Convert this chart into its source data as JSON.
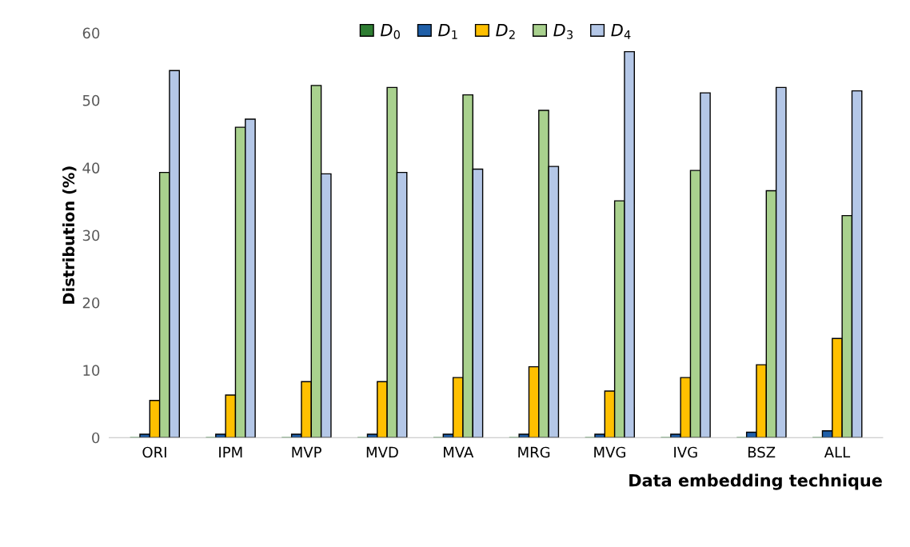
{
  "chart_data": {
    "type": "bar",
    "xlabel": "Data embedding technique",
    "ylabel": "Distribution (%)",
    "categories": [
      "ORI",
      "IPM",
      "MVP",
      "MVD",
      "MVA",
      "MRG",
      "MVG",
      "IVG",
      "BSZ",
      "ALL"
    ],
    "series": [
      {
        "name": "D$_{0}$",
        "color": "#2e7d32",
        "values": [
          0,
          0,
          0,
          0,
          0,
          0,
          0,
          0,
          0,
          0
        ]
      },
      {
        "name": "D$_{1}$",
        "color": "#1f5fa8",
        "values": [
          0.5,
          0.5,
          0.5,
          0.5,
          0.5,
          0.5,
          0.5,
          0.5,
          0.8,
          1.0
        ]
      },
      {
        "name": "D$_{2}$",
        "color": "#ffc000",
        "values": [
          5.5,
          6.3,
          8.3,
          8.3,
          8.9,
          10.5,
          6.9,
          8.9,
          10.8,
          14.7
        ]
      },
      {
        "name": "D$_{3}$",
        "color": "#a9d18e",
        "values": [
          39.3,
          46.0,
          52.2,
          51.9,
          50.8,
          48.5,
          35.1,
          39.6,
          36.6,
          32.9
        ]
      },
      {
        "name": "D$_{4}$",
        "color": "#b4c7e7",
        "values": [
          54.4,
          47.2,
          39.1,
          39.3,
          39.8,
          40.2,
          57.2,
          51.1,
          51.9,
          51.4
        ]
      }
    ],
    "ylim": [
      0,
      60
    ],
    "yticks": [
      0,
      10,
      20,
      30,
      40,
      50,
      60
    ],
    "grid": false,
    "legend": "top"
  }
}
